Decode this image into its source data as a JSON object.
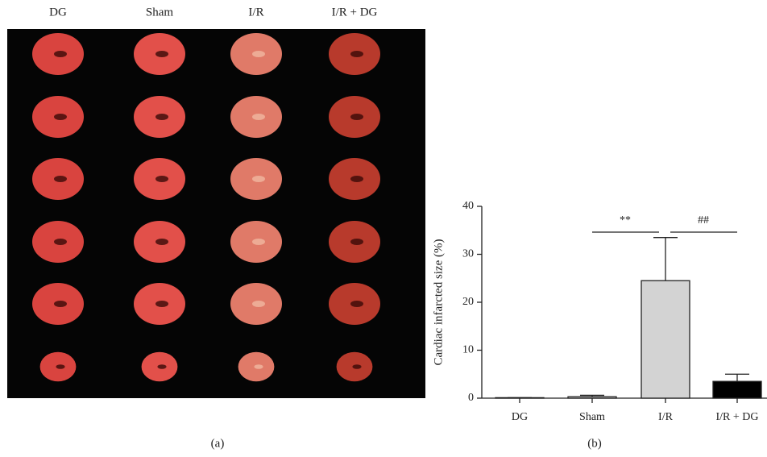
{
  "panel_a": {
    "column_labels": [
      "DG",
      "Sham",
      "I/R",
      "I/R + DG"
    ],
    "caption": "(a)"
  },
  "chart_data": {
    "type": "bar",
    "y_label": "Cardiac infarcted size (%)",
    "categories": [
      "DG",
      "Sham",
      "I/R",
      "I/R + DG"
    ],
    "values": [
      0.1,
      0.3,
      24.5,
      3.5
    ],
    "errors": [
      0,
      0.3,
      9,
      1.5
    ],
    "colors": [
      "#ffffff",
      "#ffffff",
      "#d3d3d3",
      "#000000"
    ],
    "ylim": [
      0,
      40
    ],
    "yticks": [
      0,
      10,
      20,
      30,
      40
    ],
    "annotations": [
      "**",
      "##"
    ],
    "caption": "(b)"
  }
}
